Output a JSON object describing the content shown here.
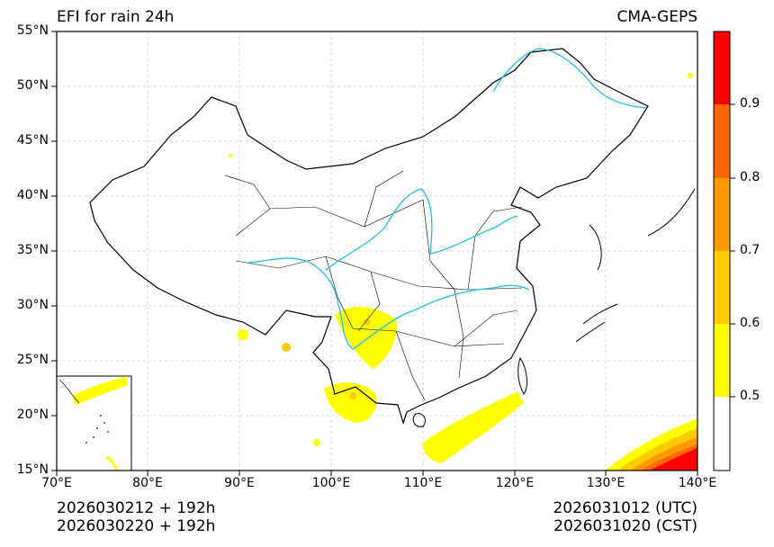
{
  "title": "EFI for rain 24h",
  "model": "CMA-GEPS",
  "lat_labels": [
    "55°N",
    "50°N",
    "45°N",
    "40°N",
    "35°N",
    "30°N",
    "25°N",
    "20°N",
    "15°N"
  ],
  "lon_labels": [
    "70°E",
    "80°E",
    "90°E",
    "100°E",
    "110°E",
    "120°E",
    "130°E",
    "140°E"
  ],
  "colorbar": {
    "ticks": [
      "0.5",
      "0.6",
      "0.7",
      "0.8",
      "0.9"
    ],
    "colors": [
      "#ffffff",
      "#ffff00",
      "#ffcc00",
      "#ff9900",
      "#ff6600",
      "#ff0000"
    ]
  },
  "footer": {
    "init_utc": "2026030212 + 192h",
    "init_cst": "2026030220 + 192h",
    "valid_utc": "2026031012 (UTC)",
    "valid_cst": "2026031020 (CST)"
  }
}
